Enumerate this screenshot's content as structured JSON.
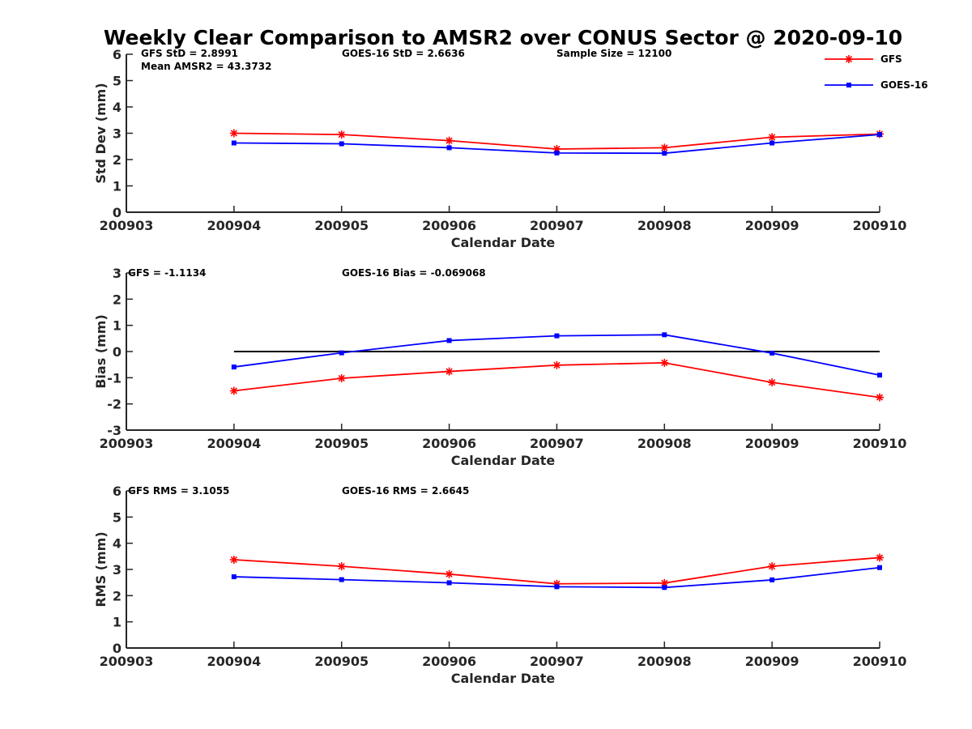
{
  "title": "Weekly Clear Comparison to AMSR2 over CONUS Sector @ 2020-09-10",
  "legend": {
    "placement": "top-right",
    "entries": [
      {
        "name": "GFS",
        "color": "#ff0000",
        "marker": "asterisk"
      },
      {
        "name": "GOES-16",
        "color": "#0000ff",
        "marker": "square"
      }
    ]
  },
  "chart_data": [
    {
      "type": "line",
      "xlabel": "Calendar Date",
      "ylabel": "Std Dev (mm)",
      "categories": [
        "200903",
        "200904",
        "200905",
        "200906",
        "200907",
        "200908",
        "200909",
        "200910"
      ],
      "ylim": [
        0,
        6
      ],
      "yticks": [
        0,
        1,
        2,
        3,
        4,
        5,
        6
      ],
      "grid": false,
      "annotations": [
        "GFS StD = 2.8991",
        "Mean AMSR2 = 43.3732",
        "GOES-16 StD = 2.6636",
        "Sample Size = 12100"
      ],
      "series": [
        {
          "name": "GFS",
          "color": "#ff0000",
          "marker": "asterisk",
          "values": [
            null,
            3.0,
            2.95,
            2.72,
            2.4,
            2.45,
            2.85,
            2.97
          ]
        },
        {
          "name": "GOES-16",
          "color": "#0000ff",
          "marker": "square",
          "values": [
            null,
            2.63,
            2.6,
            2.45,
            2.25,
            2.24,
            2.63,
            2.95
          ]
        }
      ]
    },
    {
      "type": "line",
      "xlabel": "Calendar Date",
      "ylabel": "Bias (mm)",
      "categories": [
        "200903",
        "200904",
        "200905",
        "200906",
        "200907",
        "200908",
        "200909",
        "200910"
      ],
      "ylim": [
        -3,
        3
      ],
      "yticks": [
        -3,
        -2,
        -1,
        0,
        1,
        2,
        3
      ],
      "grid": false,
      "reference_line": 0,
      "annotations": [
        "GFS = -1.1134",
        "GOES-16 Bias  = -0.069068"
      ],
      "series": [
        {
          "name": "GFS",
          "color": "#ff0000",
          "marker": "asterisk",
          "values": [
            null,
            -1.5,
            -1.02,
            -0.76,
            -0.52,
            -0.43,
            -1.18,
            -1.75
          ]
        },
        {
          "name": "GOES-16",
          "color": "#0000ff",
          "marker": "square",
          "values": [
            null,
            -0.59,
            -0.05,
            0.42,
            0.6,
            0.64,
            -0.06,
            -0.9
          ]
        }
      ]
    },
    {
      "type": "line",
      "xlabel": "Calendar Date",
      "ylabel": "RMS (mm)",
      "categories": [
        "200903",
        "200904",
        "200905",
        "200906",
        "200907",
        "200908",
        "200909",
        "200910"
      ],
      "ylim": [
        0,
        6
      ],
      "yticks": [
        0,
        1,
        2,
        3,
        4,
        5,
        6
      ],
      "grid": false,
      "annotations": [
        "GFS RMS = 3.1055",
        "GOES-16 RMS = 2.6645"
      ],
      "series": [
        {
          "name": "GFS",
          "color": "#ff0000",
          "marker": "asterisk",
          "values": [
            null,
            3.37,
            3.12,
            2.82,
            2.45,
            2.48,
            3.12,
            3.45
          ]
        },
        {
          "name": "GOES-16",
          "color": "#0000ff",
          "marker": "square",
          "values": [
            null,
            2.72,
            2.61,
            2.49,
            2.34,
            2.31,
            2.6,
            3.07
          ]
        }
      ]
    }
  ]
}
